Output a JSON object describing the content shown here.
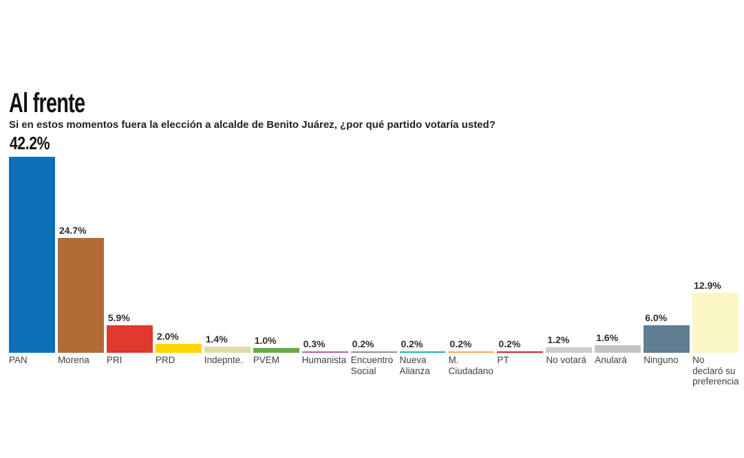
{
  "chart_data": {
    "type": "bar",
    "title": "Al frente",
    "subtitle": "Si en estos momentos fuera la elección a alcalde de Benito Juárez, ¿por qué partido votaría usted?",
    "unit": "%",
    "ylim": [
      0,
      42.2
    ],
    "grid": false,
    "legend": false,
    "categories": [
      "PAN",
      "Morena",
      "PRI",
      "PRD",
      "Indepnte.",
      "PVEM",
      "Humanista",
      "Encuentro\nSocial",
      "Nueva\nAlianza",
      "M.\nCiudadano",
      "PT",
      "No votará",
      "Anulará",
      "Ninguno",
      "No\ndeclaró su\npreferencia"
    ],
    "values": [
      42.2,
      24.7,
      5.9,
      2.0,
      1.4,
      1.0,
      0.3,
      0.2,
      0.2,
      0.2,
      0.2,
      1.2,
      1.6,
      6.0,
      12.9
    ],
    "value_labels": [
      "42.2%",
      "24.7%",
      "5.9%",
      "2.0%",
      "1.4%",
      "1.0%",
      "0.3%",
      "0.2%",
      "0.2%",
      "0.2%",
      "0.2%",
      "1.2%",
      "1.6%",
      "6.0%",
      "12.9%"
    ],
    "bar_colors": [
      "#0E70B8",
      "#B26B35",
      "#E0382C",
      "#FFD400",
      "#DEDBAA",
      "#6BAB45",
      "#B55CA5",
      "#8F8F8F",
      "#1FADBB",
      "#F5A94F",
      "#D6202A",
      "#CCCCCC",
      "#C4C4C4",
      "#5E7E92",
      "#FAF6C5"
    ],
    "highlight_first_label": true
  }
}
